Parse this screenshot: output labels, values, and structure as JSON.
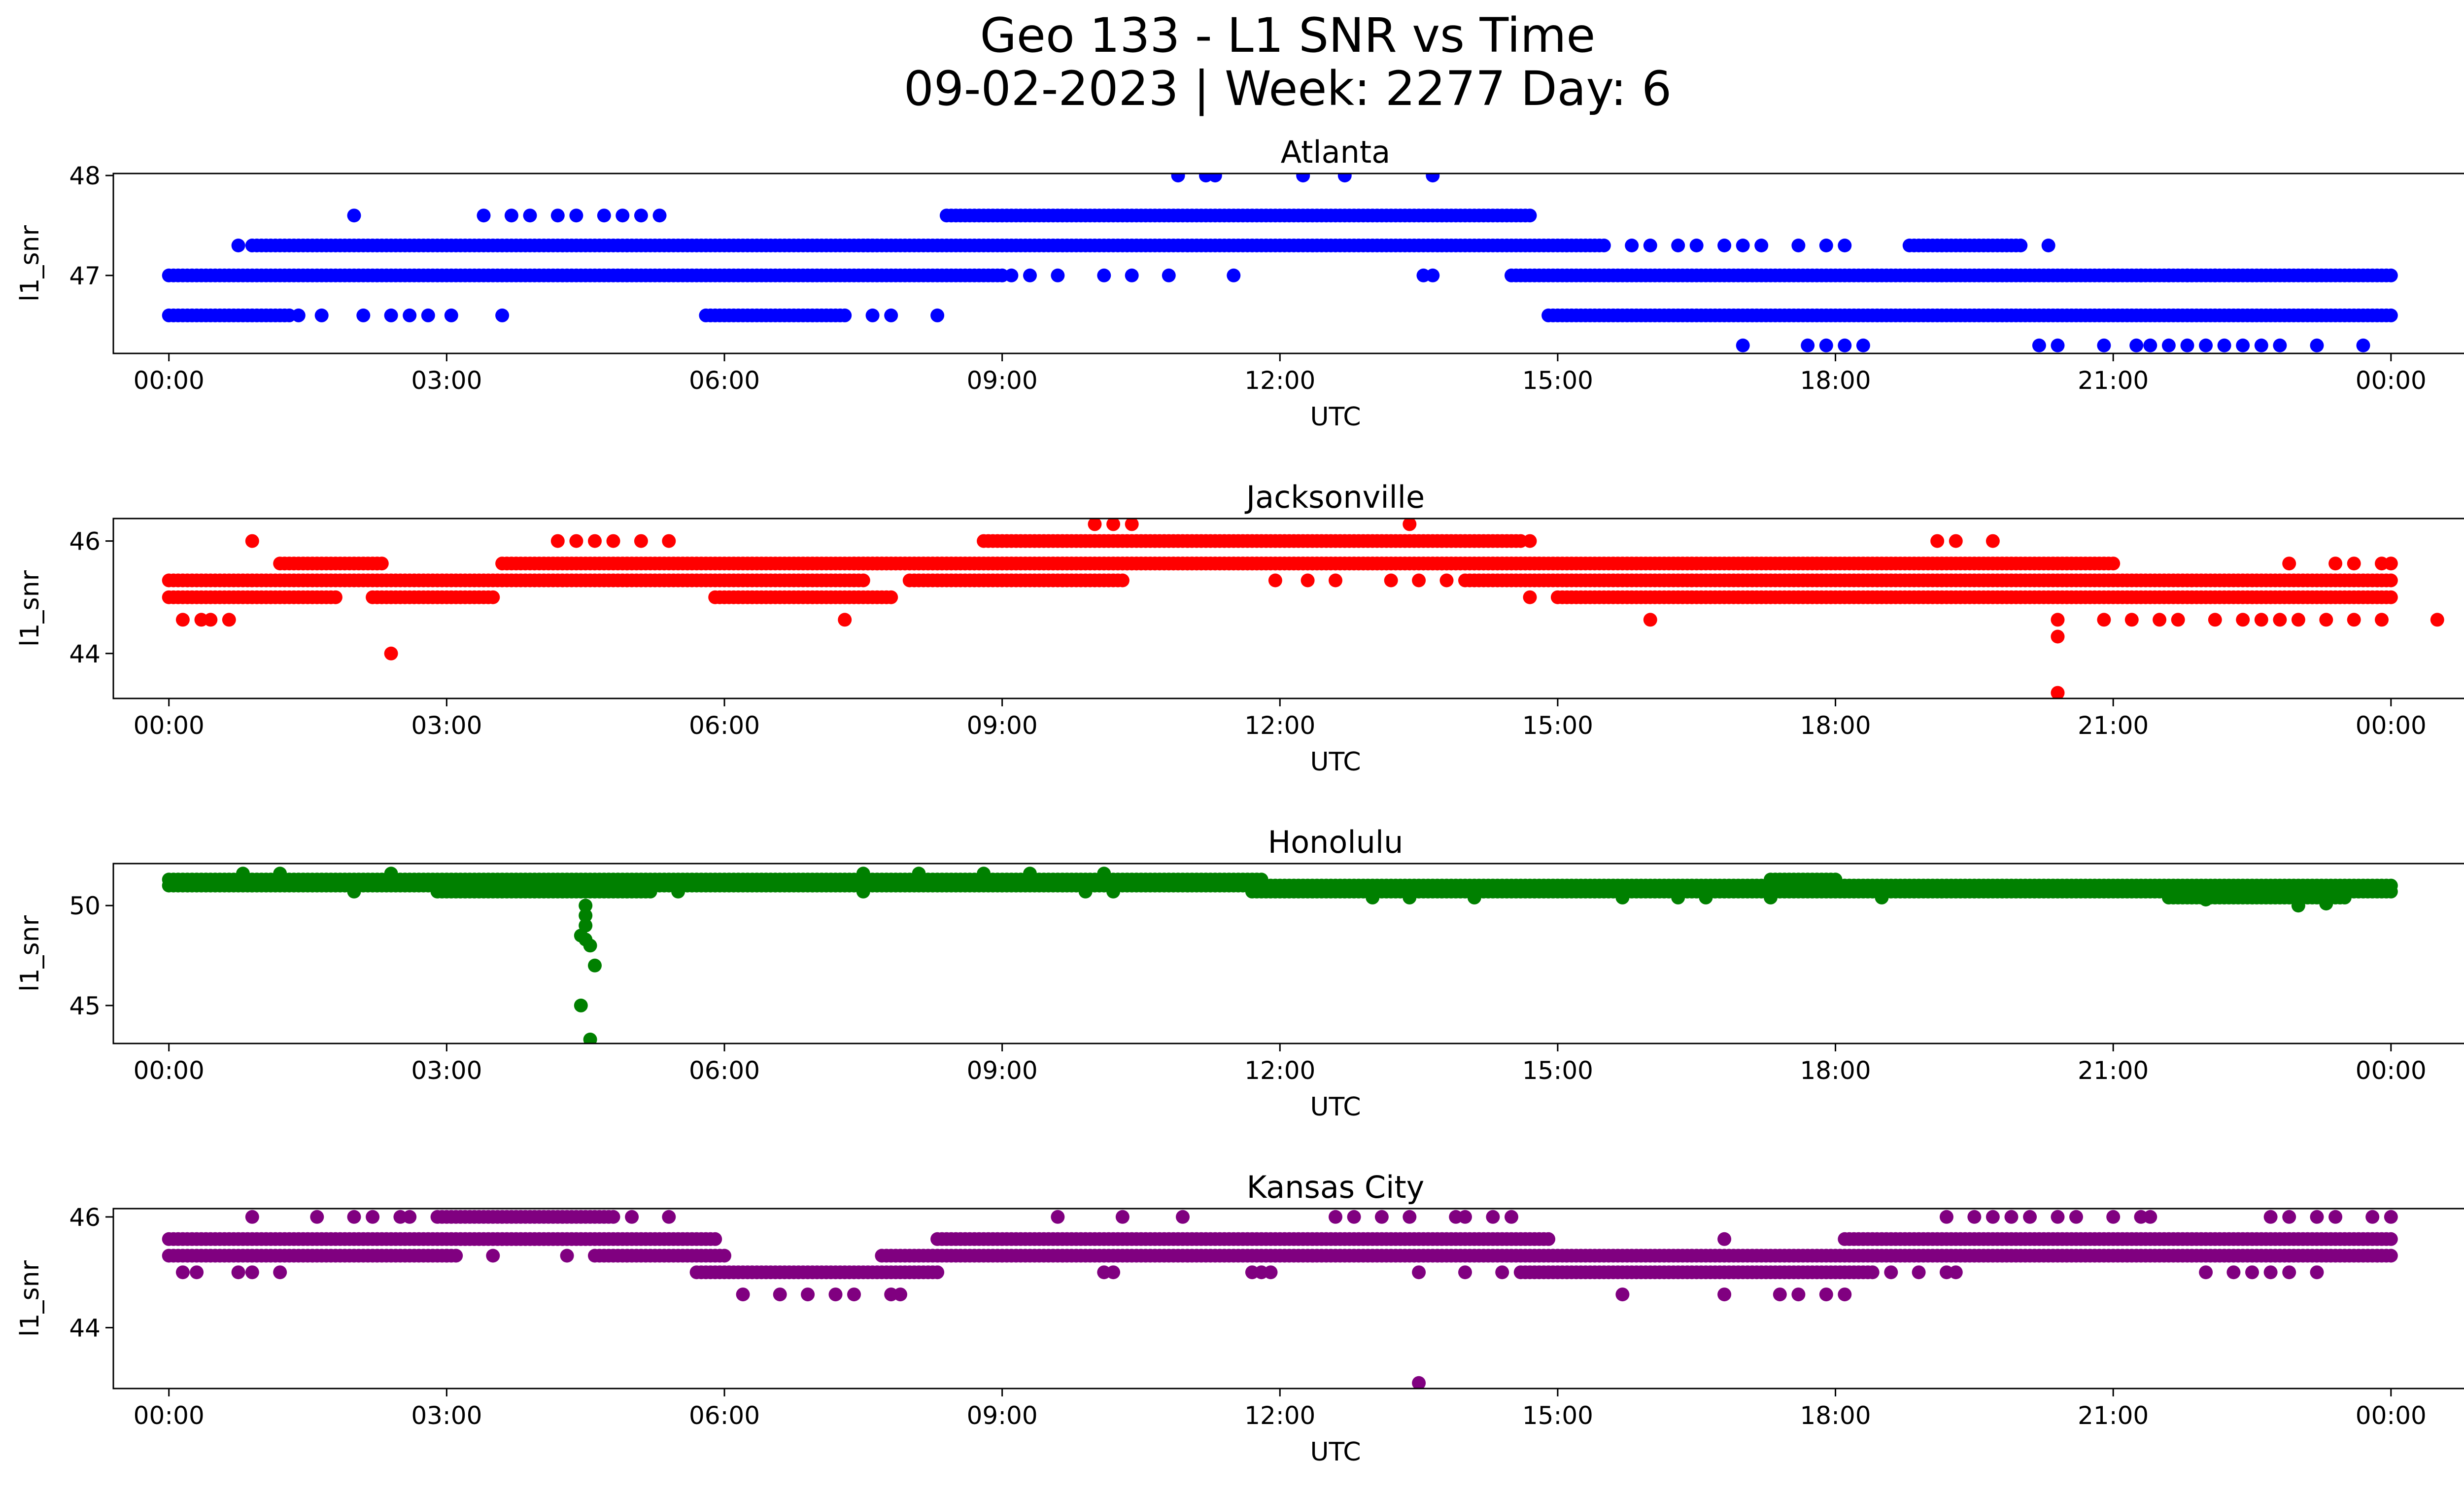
{
  "title": {
    "line1": "Geo 133 - L1 SNR vs Time",
    "line2": "09-02-2023 | Week: 2277 Day: 6"
  },
  "chart_data": [
    {
      "type": "scatter",
      "title": "Atlanta",
      "xlabel": "UTC",
      "ylabel": "l1_snr",
      "color": "#0000ff",
      "xlim": [
        -0.6,
        25.8
      ],
      "ylim": [
        46.22,
        48.02
      ],
      "xticks": [
        0,
        3,
        6,
        9,
        12,
        15,
        18,
        21,
        24
      ],
      "xticklabels": [
        "00:00",
        "03:00",
        "06:00",
        "09:00",
        "12:00",
        "15:00",
        "18:00",
        "21:00",
        "00:00"
      ],
      "yticks": [
        47,
        48
      ],
      "segments": [
        {
          "y": 47.0,
          "x0": 0.0,
          "x1": 9.0
        },
        {
          "y": 47.0,
          "x0": 14.5,
          "x1": 24.0
        },
        {
          "y": 46.6,
          "x0": 0.0,
          "x1": 1.3
        },
        {
          "y": 46.6,
          "x0": 5.8,
          "x1": 7.3
        },
        {
          "y": 46.6,
          "x0": 14.9,
          "x1": 24.0
        },
        {
          "y": 47.3,
          "x0": 0.9,
          "x1": 7.6
        },
        {
          "y": 47.3,
          "x0": 7.5,
          "x1": 15.5
        },
        {
          "y": 47.3,
          "x0": 18.8,
          "x1": 20.0
        },
        {
          "y": 47.6,
          "x0": 8.4,
          "x1": 14.7
        }
      ],
      "points": [
        [
          0.75,
          47.3
        ],
        [
          1.4,
          46.6
        ],
        [
          1.65,
          46.6
        ],
        [
          2.1,
          46.6
        ],
        [
          2.4,
          46.6
        ],
        [
          2.6,
          46.6
        ],
        [
          2.8,
          46.6
        ],
        [
          3.05,
          46.6
        ],
        [
          3.6,
          46.6
        ],
        [
          8.3,
          46.6
        ],
        [
          7.6,
          46.6
        ],
        [
          7.8,
          46.6
        ],
        [
          2.0,
          47.6
        ],
        [
          3.4,
          47.6
        ],
        [
          3.7,
          47.6
        ],
        [
          3.9,
          47.6
        ],
        [
          4.2,
          47.6
        ],
        [
          4.4,
          47.6
        ],
        [
          4.7,
          47.6
        ],
        [
          4.9,
          47.6
        ],
        [
          5.1,
          47.6
        ],
        [
          5.3,
          47.6
        ],
        [
          9.1,
          47.0
        ],
        [
          9.3,
          47.0
        ],
        [
          9.6,
          47.0
        ],
        [
          10.1,
          47.0
        ],
        [
          10.4,
          47.0
        ],
        [
          10.8,
          47.0
        ],
        [
          11.5,
          47.0
        ],
        [
          13.55,
          47.0
        ],
        [
          13.65,
          47.0
        ],
        [
          10.9,
          48.0
        ],
        [
          11.2,
          48.0
        ],
        [
          11.3,
          48.0
        ],
        [
          12.25,
          48.0
        ],
        [
          12.7,
          48.0
        ],
        [
          13.65,
          48.0
        ],
        [
          15.8,
          47.3
        ],
        [
          16.0,
          47.3
        ],
        [
          16.3,
          47.3
        ],
        [
          16.5,
          47.3
        ],
        [
          16.8,
          47.3
        ],
        [
          17.0,
          47.3
        ],
        [
          17.2,
          47.3
        ],
        [
          17.6,
          47.3
        ],
        [
          17.9,
          47.3
        ],
        [
          18.1,
          47.3
        ],
        [
          20.3,
          47.3
        ],
        [
          21.0,
          47.0
        ],
        [
          21.3,
          47.0
        ],
        [
          21.6,
          47.0
        ],
        [
          21.8,
          47.0
        ],
        [
          22.1,
          47.0
        ],
        [
          17.0,
          46.3
        ],
        [
          17.7,
          46.3
        ],
        [
          17.9,
          46.3
        ],
        [
          18.1,
          46.3
        ],
        [
          18.3,
          46.3
        ],
        [
          20.2,
          46.3
        ],
        [
          20.4,
          46.3
        ],
        [
          20.9,
          46.3
        ],
        [
          21.25,
          46.3
        ],
        [
          21.4,
          46.3
        ],
        [
          21.6,
          46.3
        ],
        [
          21.8,
          46.3
        ],
        [
          22.0,
          46.3
        ],
        [
          22.2,
          46.3
        ],
        [
          22.4,
          46.3
        ],
        [
          22.6,
          46.3
        ],
        [
          22.8,
          46.3
        ],
        [
          23.2,
          46.3
        ],
        [
          23.7,
          46.3
        ]
      ]
    },
    {
      "type": "scatter",
      "title": "Jacksonville",
      "xlabel": "UTC",
      "ylabel": "l1_snr",
      "color": "#ff0000",
      "xlim": [
        -0.6,
        25.8
      ],
      "ylim": [
        43.2,
        46.4
      ],
      "xticks": [
        0,
        3,
        6,
        9,
        12,
        15,
        18,
        21,
        24
      ],
      "xticklabels": [
        "00:00",
        "03:00",
        "06:00",
        "09:00",
        "12:00",
        "15:00",
        "18:00",
        "21:00",
        "00:00"
      ],
      "yticks": [
        44,
        46
      ],
      "segments": [
        {
          "y": 45.0,
          "x0": 0.0,
          "x1": 1.8
        },
        {
          "y": 45.0,
          "x0": 2.2,
          "x1": 3.5
        },
        {
          "y": 45.0,
          "x0": 5.9,
          "x1": 7.8
        },
        {
          "y": 45.0,
          "x0": 15.0,
          "x1": 24.0
        },
        {
          "y": 45.3,
          "x0": 0.0,
          "x1": 7.5
        },
        {
          "y": 45.3,
          "x0": 8.0,
          "x1": 10.3
        },
        {
          "y": 45.3,
          "x0": 14.0,
          "x1": 24.0
        },
        {
          "y": 45.6,
          "x0": 1.2,
          "x1": 2.3
        },
        {
          "y": 45.6,
          "x0": 3.6,
          "x1": 21.0
        },
        {
          "y": 45.6,
          "x0": 7.4,
          "x1": 14.8
        },
        {
          "y": 46.0,
          "x0": 8.8,
          "x1": 14.6
        }
      ],
      "points": [
        [
          0.15,
          44.6
        ],
        [
          0.35,
          44.6
        ],
        [
          0.45,
          44.6
        ],
        [
          0.65,
          44.6
        ],
        [
          7.3,
          44.6
        ],
        [
          16.0,
          44.6
        ],
        [
          20.4,
          44.6
        ],
        [
          20.4,
          44.3
        ],
        [
          20.4,
          43.3
        ],
        [
          2.4,
          44.0
        ],
        [
          0.9,
          46.0
        ],
        [
          4.2,
          46.0
        ],
        [
          4.4,
          46.0
        ],
        [
          4.6,
          46.0
        ],
        [
          4.8,
          46.0
        ],
        [
          5.1,
          46.0
        ],
        [
          5.4,
          46.0
        ],
        [
          14.7,
          46.0
        ],
        [
          19.1,
          46.0
        ],
        [
          19.3,
          46.0
        ],
        [
          19.7,
          46.0
        ],
        [
          10.0,
          46.3
        ],
        [
          10.2,
          46.3
        ],
        [
          10.4,
          46.3
        ],
        [
          13.4,
          46.3
        ],
        [
          11.95,
          45.3
        ],
        [
          12.3,
          45.3
        ],
        [
          12.6,
          45.3
        ],
        [
          13.2,
          45.3
        ],
        [
          13.5,
          45.3
        ],
        [
          13.8,
          45.3
        ],
        [
          14.7,
          45.0
        ],
        [
          20.9,
          44.6
        ],
        [
          21.2,
          44.6
        ],
        [
          21.5,
          44.6
        ],
        [
          21.7,
          44.6
        ],
        [
          22.1,
          44.6
        ],
        [
          22.4,
          44.6
        ],
        [
          22.6,
          44.6
        ],
        [
          22.8,
          44.6
        ],
        [
          23.0,
          44.6
        ],
        [
          23.3,
          44.6
        ],
        [
          23.6,
          44.6
        ],
        [
          23.9,
          44.6
        ],
        [
          24.5,
          44.6
        ],
        [
          22.9,
          45.6
        ],
        [
          23.4,
          45.6
        ],
        [
          23.6,
          45.6
        ],
        [
          23.9,
          45.6
        ],
        [
          24.0,
          45.6
        ]
      ]
    },
    {
      "type": "scatter",
      "title": "Honolulu",
      "xlabel": "UTC",
      "ylabel": "l1_snr",
      "color": "#008000",
      "xlim": [
        -0.6,
        25.8
      ],
      "ylim": [
        43.1,
        52.1
      ],
      "xticks": [
        0,
        3,
        6,
        9,
        12,
        15,
        18,
        21,
        24
      ],
      "xticklabels": [
        "00:00",
        "03:00",
        "06:00",
        "09:00",
        "12:00",
        "15:00",
        "18:00",
        "21:00",
        "00:00"
      ],
      "yticks": [
        45,
        50
      ],
      "segments": [
        {
          "y": 51.0,
          "x0": 0.0,
          "x1": 24.0
        },
        {
          "y": 51.3,
          "x0": 0.0,
          "x1": 11.8
        },
        {
          "y": 51.3,
          "x0": 17.3,
          "x1": 18.0
        },
        {
          "y": 50.7,
          "x0": 2.9,
          "x1": 5.2
        },
        {
          "y": 50.7,
          "x0": 11.7,
          "x1": 24.0
        },
        {
          "y": 50.4,
          "x0": 21.6,
          "x1": 23.5
        }
      ],
      "points": [
        [
          4.5,
          50.0
        ],
        [
          4.5,
          49.5
        ],
        [
          4.5,
          49.0
        ],
        [
          4.45,
          48.5
        ],
        [
          4.55,
          48.0
        ],
        [
          4.5,
          48.3
        ],
        [
          4.6,
          47.0
        ],
        [
          4.45,
          45.0
        ],
        [
          4.55,
          43.3
        ],
        [
          0.8,
          51.6
        ],
        [
          1.2,
          51.6
        ],
        [
          2.4,
          51.6
        ],
        [
          7.5,
          51.6
        ],
        [
          8.1,
          51.6
        ],
        [
          8.8,
          51.6
        ],
        [
          9.3,
          51.6
        ],
        [
          10.1,
          51.6
        ],
        [
          2.0,
          50.7
        ],
        [
          5.5,
          50.7
        ],
        [
          7.5,
          50.7
        ],
        [
          9.9,
          50.7
        ],
        [
          10.2,
          50.7
        ],
        [
          13.0,
          50.4
        ],
        [
          13.4,
          50.4
        ],
        [
          14.1,
          50.4
        ],
        [
          15.7,
          50.4
        ],
        [
          16.3,
          50.4
        ],
        [
          16.6,
          50.4
        ],
        [
          17.3,
          50.4
        ],
        [
          18.5,
          50.4
        ],
        [
          22.0,
          50.3
        ],
        [
          23.0,
          50.0
        ],
        [
          23.3,
          50.1
        ]
      ]
    },
    {
      "type": "scatter",
      "title": "Kansas City",
      "xlabel": "UTC",
      "ylabel": "l1_snr",
      "color": "#800080",
      "xlim": [
        -0.6,
        25.8
      ],
      "ylim": [
        42.9,
        46.15
      ],
      "xticks": [
        0,
        3,
        6,
        9,
        12,
        15,
        18,
        21,
        24
      ],
      "xticklabels": [
        "00:00",
        "03:00",
        "06:00",
        "09:00",
        "12:00",
        "15:00",
        "18:00",
        "21:00",
        "00:00"
      ],
      "yticks": [
        44,
        46
      ],
      "segments": [
        {
          "y": 45.3,
          "x0": 0.0,
          "x1": 3.1
        },
        {
          "y": 45.3,
          "x0": 4.6,
          "x1": 6.0
        },
        {
          "y": 45.3,
          "x0": 7.7,
          "x1": 24.0
        },
        {
          "y": 45.6,
          "x0": 0.0,
          "x1": 5.9
        },
        {
          "y": 45.6,
          "x0": 8.3,
          "x1": 14.9
        },
        {
          "y": 45.6,
          "x0": 18.1,
          "x1": 24.0
        },
        {
          "y": 45.0,
          "x0": 5.7,
          "x1": 8.3
        },
        {
          "y": 45.0,
          "x0": 14.6,
          "x1": 18.4
        },
        {
          "y": 46.0,
          "x0": 2.9,
          "x1": 4.8
        }
      ],
      "points": [
        [
          0.15,
          45.0
        ],
        [
          0.3,
          45.0
        ],
        [
          0.75,
          45.0
        ],
        [
          0.9,
          45.0
        ],
        [
          1.2,
          45.0
        ],
        [
          6.2,
          44.6
        ],
        [
          6.6,
          44.6
        ],
        [
          6.9,
          44.6
        ],
        [
          7.2,
          44.6
        ],
        [
          7.4,
          44.6
        ],
        [
          7.8,
          44.6
        ],
        [
          7.9,
          44.6
        ],
        [
          0.9,
          46.0
        ],
        [
          1.6,
          46.0
        ],
        [
          2.0,
          46.0
        ],
        [
          2.2,
          46.0
        ],
        [
          2.5,
          46.0
        ],
        [
          2.6,
          46.0
        ],
        [
          5.0,
          46.0
        ],
        [
          5.4,
          46.0
        ],
        [
          9.6,
          46.0
        ],
        [
          10.3,
          46.0
        ],
        [
          10.95,
          46.0
        ],
        [
          12.6,
          46.0
        ],
        [
          12.8,
          46.0
        ],
        [
          13.1,
          46.0
        ],
        [
          13.4,
          46.0
        ],
        [
          13.9,
          46.0
        ],
        [
          14.0,
          46.0
        ],
        [
          14.3,
          46.0
        ],
        [
          14.5,
          46.0
        ],
        [
          3.0,
          45.3
        ],
        [
          3.5,
          45.3
        ],
        [
          4.3,
          45.3
        ],
        [
          10.1,
          45.0
        ],
        [
          10.2,
          45.0
        ],
        [
          11.7,
          45.0
        ],
        [
          11.8,
          45.0
        ],
        [
          11.9,
          45.0
        ],
        [
          13.5,
          45.0
        ],
        [
          14.0,
          45.0
        ],
        [
          14.4,
          45.0
        ],
        [
          15.7,
          44.6
        ],
        [
          16.8,
          44.6
        ],
        [
          17.4,
          44.6
        ],
        [
          17.6,
          44.6
        ],
        [
          17.9,
          44.6
        ],
        [
          18.1,
          44.6
        ],
        [
          16.8,
          45.6
        ],
        [
          19.2,
          46.0
        ],
        [
          19.5,
          46.0
        ],
        [
          19.7,
          46.0
        ],
        [
          19.9,
          46.0
        ],
        [
          20.1,
          46.0
        ],
        [
          20.4,
          46.0
        ],
        [
          20.6,
          46.0
        ],
        [
          21.0,
          46.0
        ],
        [
          21.3,
          46.0
        ],
        [
          21.4,
          46.0
        ],
        [
          18.6,
          45.0
        ],
        [
          18.9,
          45.0
        ],
        [
          19.2,
          45.0
        ],
        [
          19.3,
          45.0
        ],
        [
          22.0,
          45.0
        ],
        [
          22.3,
          45.0
        ],
        [
          22.5,
          45.0
        ],
        [
          22.7,
          45.0
        ],
        [
          22.9,
          45.0
        ],
        [
          23.2,
          45.0
        ],
        [
          22.7,
          46.0
        ],
        [
          22.9,
          46.0
        ],
        [
          23.2,
          46.0
        ],
        [
          23.4,
          46.0
        ],
        [
          23.8,
          46.0
        ],
        [
          24.0,
          46.0
        ],
        [
          13.5,
          43.0
        ]
      ]
    }
  ]
}
